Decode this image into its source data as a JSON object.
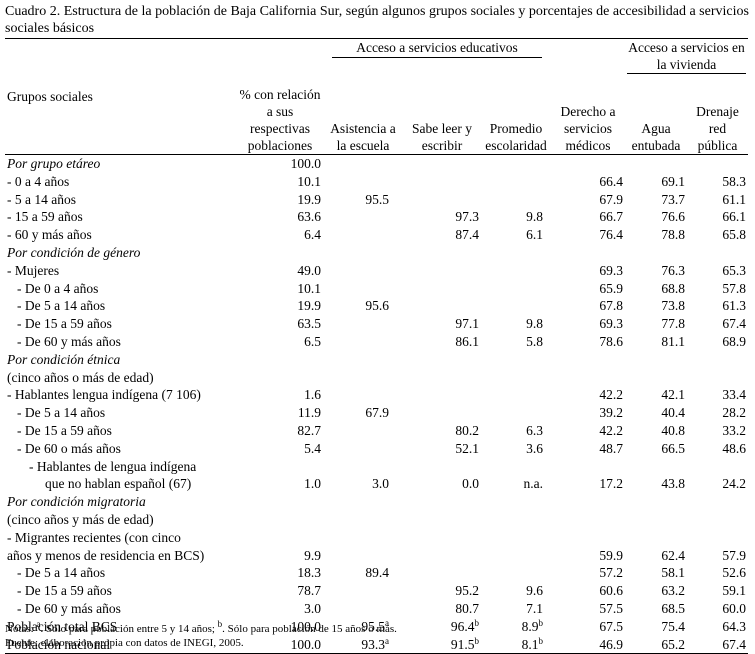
{
  "caption": "Cuadro 2. Estructura de la población de Baja California Sur, según algunos grupos sociales y porcentajes de accesibilidad a servicios sociales básicos",
  "header": {
    "groups_label": "Grupos sociales",
    "pct_label": "% con relación a sus respectivas poblaciones",
    "edu_group": "Acceso a servicios educativos",
    "viv_group": "Acceso a servicios en la vivienda",
    "cols": {
      "asistencia": "Asistencia a la escuela",
      "sabe_leer": "Sabe leer y escribir",
      "promedio": "Promedio escolaridad",
      "derecho": "Derecho a servicios médicos",
      "agua": "Agua entubada",
      "drenaje": "Drenaje red pública"
    }
  },
  "rows": [
    {
      "label": "Por grupo etáreo",
      "style": "ital",
      "pct": "100.0",
      "asis": "",
      "leer": "",
      "prom": "",
      "der": "",
      "agua": "",
      "dren": ""
    },
    {
      "label": "- 0 a 4 años",
      "style": "",
      "pct": "10.1",
      "asis": "",
      "leer": "",
      "prom": "",
      "der": "66.4",
      "agua": "69.1",
      "dren": "58.3"
    },
    {
      "label": "- 5 a 14 años",
      "style": "",
      "pct": "19.9",
      "asis": "95.5",
      "leer": "",
      "prom": "",
      "der": "67.9",
      "agua": "73.7",
      "dren": "61.1"
    },
    {
      "label": "- 15 a 59 años",
      "style": "",
      "pct": "63.6",
      "asis": "",
      "leer": "97.3",
      "prom": "9.8",
      "der": "66.7",
      "agua": "76.6",
      "dren": "66.1"
    },
    {
      "label": "- 60 y más años",
      "style": "",
      "pct": "6.4",
      "asis": "",
      "leer": "87.4",
      "prom": "6.1",
      "der": "76.4",
      "agua": "78.8",
      "dren": "65.8"
    },
    {
      "label": "Por condición de género",
      "style": "ital",
      "pct": "",
      "asis": "",
      "leer": "",
      "prom": "",
      "der": "",
      "agua": "",
      "dren": ""
    },
    {
      "label": "- Mujeres",
      "style": "",
      "pct": "49.0",
      "asis": "",
      "leer": "",
      "prom": "",
      "der": "69.3",
      "agua": "76.3",
      "dren": "65.3"
    },
    {
      "label": "- De 0 a 4 años",
      "style": "ind1",
      "pct": "10.1",
      "asis": "",
      "leer": "",
      "prom": "",
      "der": "65.9",
      "agua": "68.8",
      "dren": "57.8"
    },
    {
      "label": "- De 5 a 14 años",
      "style": "ind1",
      "pct": "19.9",
      "asis": "95.6",
      "leer": "",
      "prom": "",
      "der": "67.8",
      "agua": "73.8",
      "dren": "61.3"
    },
    {
      "label": "- De 15 a 59 años",
      "style": "ind1",
      "pct": "63.5",
      "asis": "",
      "leer": "97.1",
      "prom": "9.8",
      "der": "69.3",
      "agua": "77.8",
      "dren": "67.4"
    },
    {
      "label": "- De 60 y más años",
      "style": "ind1",
      "pct": "6.5",
      "asis": "",
      "leer": "86.1",
      "prom": "5.8",
      "der": "78.6",
      "agua": "81.1",
      "dren": "68.9"
    },
    {
      "label": "Por condición étnica",
      "style": "ital",
      "pct": "",
      "asis": "",
      "leer": "",
      "prom": "",
      "der": "",
      "agua": "",
      "dren": ""
    },
    {
      "label": "(cinco años o más de edad)",
      "style": "",
      "pct": "",
      "asis": "",
      "leer": "",
      "prom": "",
      "der": "",
      "agua": "",
      "dren": ""
    },
    {
      "label": "- Hablantes lengua indígena (7 106)",
      "style": "",
      "pct": "1.6",
      "asis": "",
      "leer": "",
      "prom": "",
      "der": "42.2",
      "agua": "42.1",
      "dren": "33.4"
    },
    {
      "label": "- De 5 a 14 años",
      "style": "ind1",
      "pct": "11.9",
      "asis": "67.9",
      "leer": "",
      "prom": "",
      "der": "39.2",
      "agua": "40.4",
      "dren": "28.2"
    },
    {
      "label": "- De 15 a 59 años",
      "style": "ind1",
      "pct": "82.7",
      "asis": "",
      "leer": "80.2",
      "prom": "6.3",
      "der": "42.2",
      "agua": "40.8",
      "dren": "33.2"
    },
    {
      "label": "- De 60 o más años",
      "style": "ind1",
      "pct": "5.4",
      "asis": "",
      "leer": "52.1",
      "prom": "3.6",
      "der": "48.7",
      "agua": "66.5",
      "dren": "48.6"
    },
    {
      "label": "- Hablantes de lengua indígena",
      "style": "ind2",
      "pct": "",
      "asis": "",
      "leer": "",
      "prom": "",
      "der": "",
      "agua": "",
      "dren": ""
    },
    {
      "label": "que no hablan español (67)",
      "style": "ind2b",
      "pct": "1.0",
      "asis": "3.0",
      "leer": "0.0",
      "prom": "n.a.",
      "der": "17.2",
      "agua": "43.8",
      "dren": "24.2"
    },
    {
      "label": "Por condición migratoria",
      "style": "ital",
      "pct": "",
      "asis": "",
      "leer": "",
      "prom": "",
      "der": "",
      "agua": "",
      "dren": ""
    },
    {
      "label": "(cinco años y más de edad)",
      "style": "",
      "pct": "",
      "asis": "",
      "leer": "",
      "prom": "",
      "der": "",
      "agua": "",
      "dren": ""
    },
    {
      "label": "- Migrantes recientes (con cinco",
      "style": "",
      "pct": "",
      "asis": "",
      "leer": "",
      "prom": "",
      "der": "",
      "agua": "",
      "dren": ""
    },
    {
      "label": "años y menos de residencia en BCS)",
      "style": "",
      "pct": "9.9",
      "asis": "",
      "leer": "",
      "prom": "",
      "der": "59.9",
      "agua": "62.4",
      "dren": "57.9"
    },
    {
      "label": "- De 5 a 14 años",
      "style": "ind1",
      "pct": "18.3",
      "asis": "89.4",
      "leer": "",
      "prom": "",
      "der": "57.2",
      "agua": "58.1",
      "dren": "52.6"
    },
    {
      "label": "- De 15 a 59 años",
      "style": "ind1",
      "pct": "78.7",
      "asis": "",
      "leer": "95.2",
      "prom": "9.6",
      "der": "60.6",
      "agua": "63.2",
      "dren": "59.1"
    },
    {
      "label": "- De 60 y más años",
      "style": "ind1",
      "pct": "3.0",
      "asis": "",
      "leer": "80.7",
      "prom": "7.1",
      "der": "57.5",
      "agua": "68.5",
      "dren": "60.0"
    },
    {
      "label": "Población total BCS",
      "style": "",
      "pct": "100.0",
      "asis": "95.5",
      "asis_sup": "a",
      "leer": "96.4",
      "leer_sup": "b",
      "prom": "8.9",
      "prom_sup": "b",
      "der": "67.5",
      "agua": "75.4",
      "dren": "64.3"
    },
    {
      "label": "Población nacional",
      "style": "",
      "pct": "100.0",
      "asis": "93.3",
      "asis_sup": "a",
      "leer": "91.5",
      "leer_sup": "b",
      "prom": "8.1",
      "prom_sup": "b",
      "der": "46.9",
      "agua": "65.2",
      "dren": "67.4"
    }
  ],
  "notes": {
    "line1": "Notas: a. Sólo para población entre 5 y 14 años; b. Sólo para población de 15 años o más.",
    "line2": "Fuente: elaboración propia con datos de INEGI, 2005."
  }
}
